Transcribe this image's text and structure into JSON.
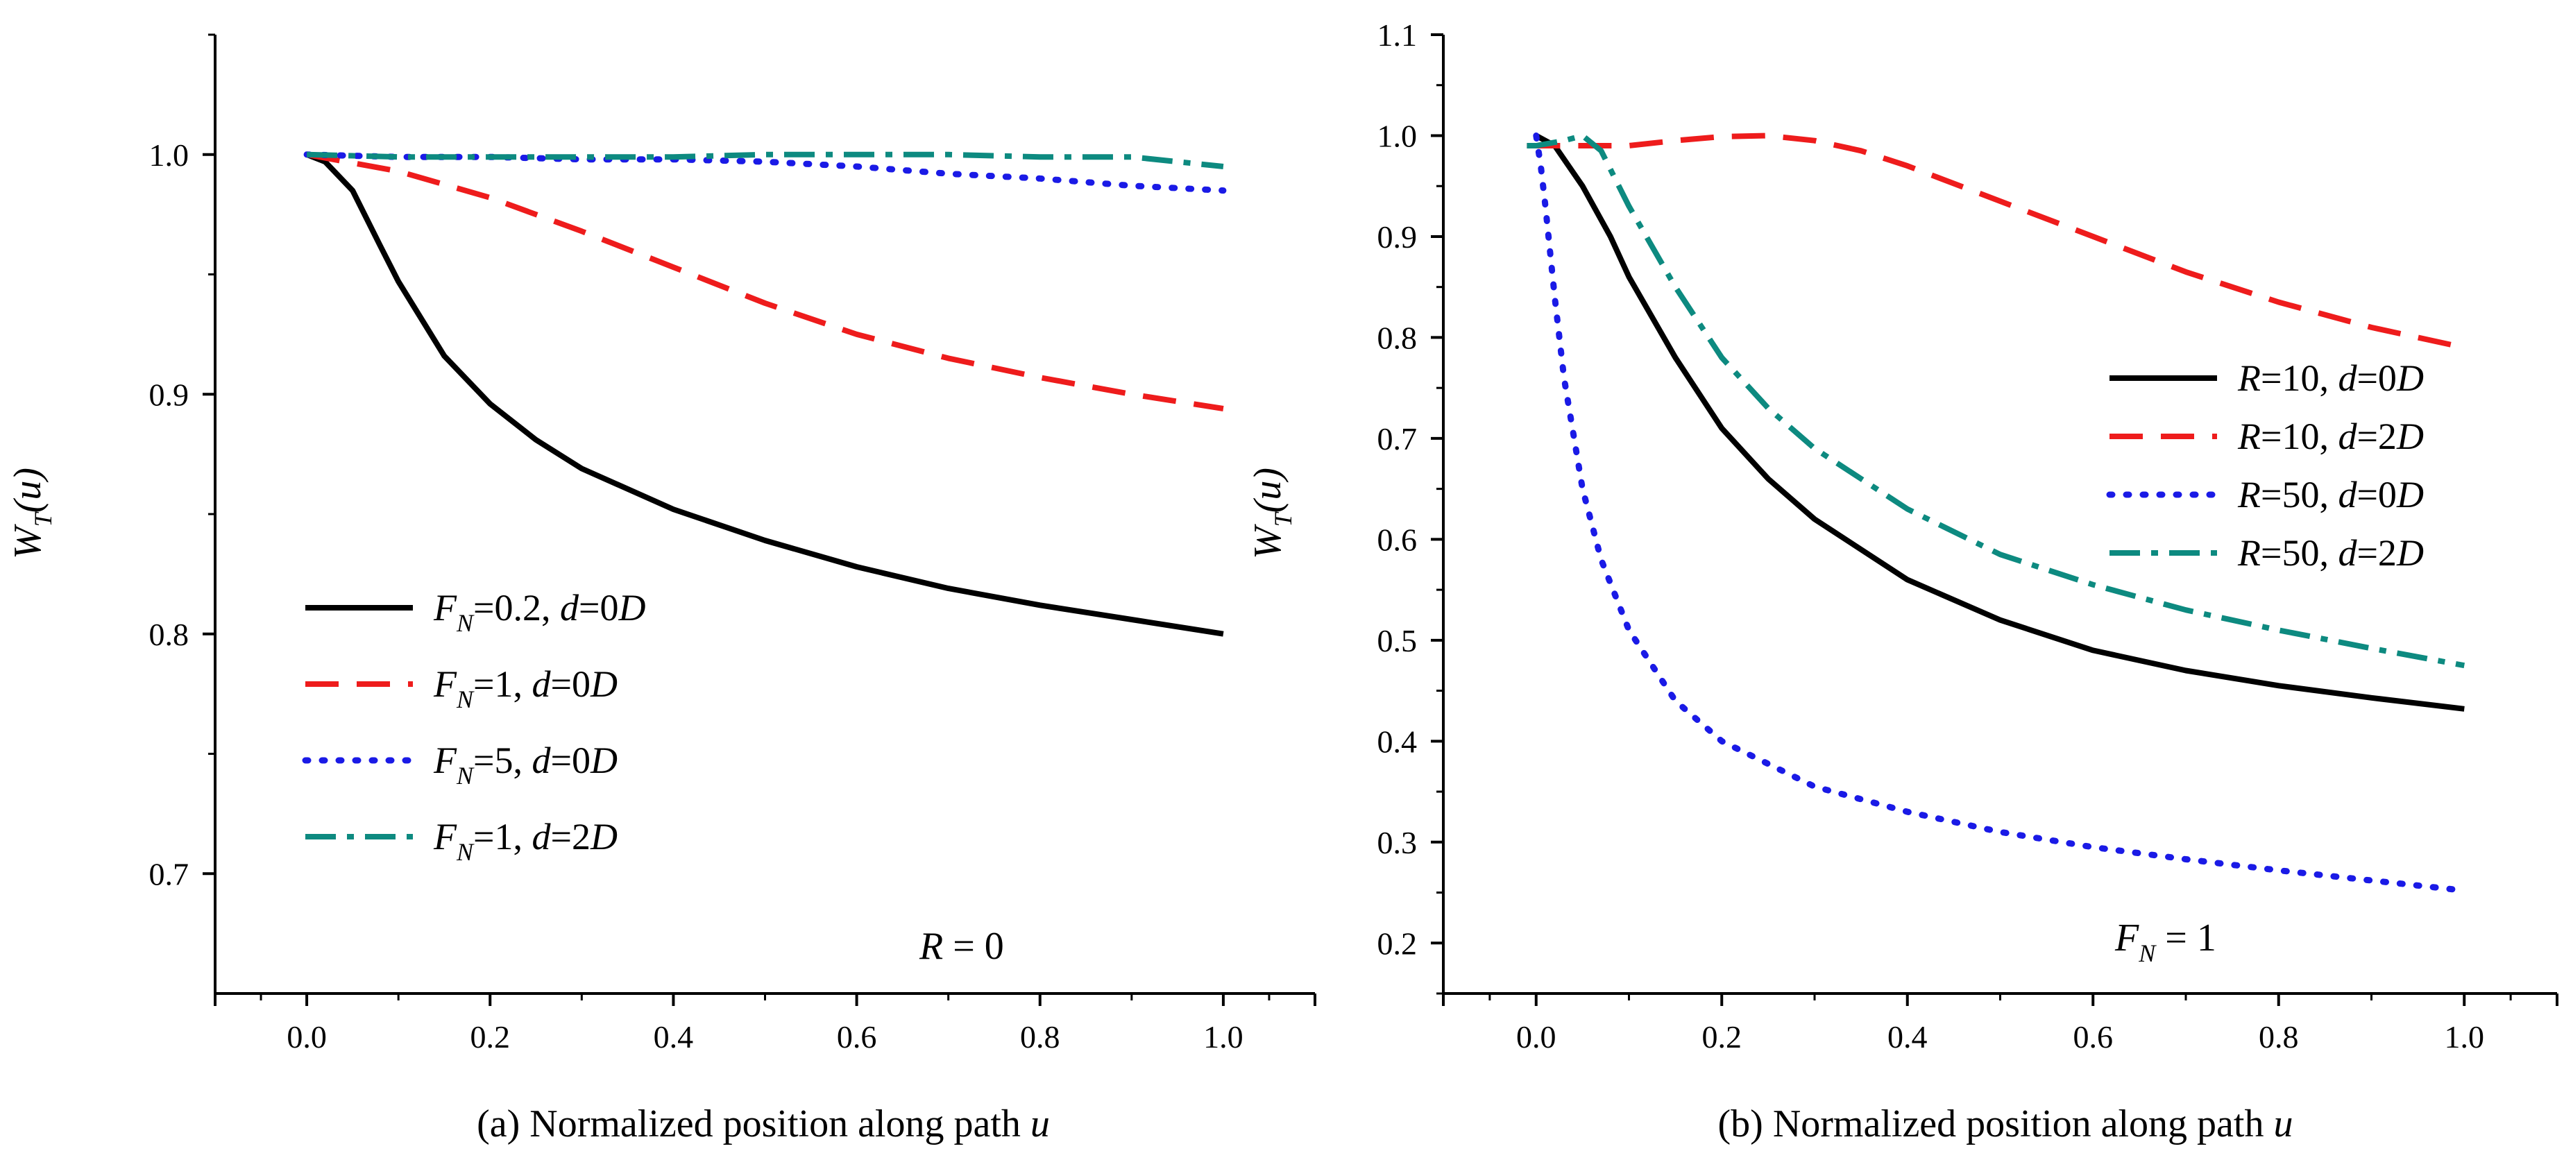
{
  "chart_data": [
    {
      "id": "a",
      "type": "line",
      "title": "",
      "xlabel": {
        "prefix": "(a) Normalized position along path ",
        "var": "u"
      },
      "ylabel": {
        "main": "W",
        "sub": "T",
        "rest": "(u)"
      },
      "xlim": [
        -0.1,
        1.1
      ],
      "ylim": [
        0.65,
        1.05
      ],
      "xticks": [
        0.0,
        0.2,
        0.4,
        0.6,
        0.8,
        1.0
      ],
      "xtick_labels": [
        "0.0",
        "0.2",
        "0.4",
        "0.6",
        "0.8",
        "1.0"
      ],
      "yticks": [
        0.7,
        0.8,
        0.9,
        1.0
      ],
      "ytick_labels": [
        "0.7",
        "0.8",
        "0.9",
        "1.0"
      ],
      "grid": false,
      "legend_position": "lower-left",
      "annotation": {
        "main": "R",
        "sub": "",
        "rest": " = 0"
      },
      "series": [
        {
          "key": "black-solid",
          "color": "#000000",
          "style": "solid",
          "legend": {
            "p1": "F",
            "p1sub": "N",
            "p2": "=0.2, ",
            "p3": "d",
            "p4": "=0",
            "p5": "D"
          },
          "x": [
            0.0,
            0.02,
            0.05,
            0.08,
            0.1,
            0.15,
            0.2,
            0.25,
            0.3,
            0.4,
            0.5,
            0.6,
            0.7,
            0.8,
            0.9,
            1.0
          ],
          "y": [
            1.0,
            0.997,
            0.985,
            0.962,
            0.947,
            0.916,
            0.896,
            0.881,
            0.869,
            0.852,
            0.839,
            0.828,
            0.819,
            0.812,
            0.806,
            0.8
          ]
        },
        {
          "key": "red-dashed",
          "color": "#ee1c1c",
          "style": "dashed",
          "legend": {
            "p1": "F",
            "p1sub": "N",
            "p2": "=1, ",
            "p3": "d",
            "p4": "=0",
            "p5": "D"
          },
          "x": [
            0.0,
            0.1,
            0.2,
            0.3,
            0.4,
            0.5,
            0.6,
            0.7,
            0.8,
            0.9,
            1.0
          ],
          "y": [
            1.0,
            0.993,
            0.982,
            0.968,
            0.953,
            0.938,
            0.925,
            0.915,
            0.907,
            0.9,
            0.894
          ]
        },
        {
          "key": "blue-dotted",
          "color": "#1a1ae6",
          "style": "dotted",
          "legend": {
            "p1": "F",
            "p1sub": "N",
            "p2": "=5, ",
            "p3": "d",
            "p4": "=0",
            "p5": "D"
          },
          "x": [
            0.0,
            0.1,
            0.2,
            0.3,
            0.4,
            0.5,
            0.6,
            0.7,
            0.8,
            0.9,
            1.0
          ],
          "y": [
            1.0,
            0.999,
            0.999,
            0.998,
            0.998,
            0.997,
            0.995,
            0.992,
            0.99,
            0.987,
            0.985
          ]
        },
        {
          "key": "teal-dashdot",
          "color": "#0d8a80",
          "style": "dashdot",
          "legend": {
            "p1": "F",
            "p1sub": "N",
            "p2": "=1, ",
            "p3": "d",
            "p4": "=2",
            "p5": "D"
          },
          "x": [
            0.0,
            0.1,
            0.2,
            0.3,
            0.4,
            0.5,
            0.6,
            0.7,
            0.8,
            0.9,
            1.0
          ],
          "y": [
            1.0,
            0.999,
            0.999,
            0.999,
            0.999,
            1.0,
            1.0,
            1.0,
            0.999,
            0.999,
            0.995
          ]
        }
      ]
    },
    {
      "id": "b",
      "type": "line",
      "title": "",
      "xlabel": {
        "prefix": "(b) Normalized position along path ",
        "var": "u"
      },
      "ylabel": {
        "main": "W",
        "sub": "T",
        "rest": "(u)"
      },
      "xlim": [
        -0.1,
        1.1
      ],
      "ylim": [
        0.15,
        1.1
      ],
      "xticks": [
        0.0,
        0.2,
        0.4,
        0.6,
        0.8,
        1.0
      ],
      "xtick_labels": [
        "0.0",
        "0.2",
        "0.4",
        "0.6",
        "0.8",
        "1.0"
      ],
      "yticks": [
        0.2,
        0.3,
        0.4,
        0.5,
        0.6,
        0.7,
        0.8,
        0.9,
        1.0,
        1.1
      ],
      "ytick_labels": [
        "0.2",
        "0.3",
        "0.4",
        "0.5",
        "0.6",
        "0.7",
        "0.8",
        "0.9",
        "1.0",
        "1.1"
      ],
      "grid": false,
      "legend_position": "center-right",
      "annotation": {
        "main": "F",
        "sub": "N",
        "rest": " = 1"
      },
      "series": [
        {
          "key": "black-solid",
          "color": "#000000",
          "style": "solid",
          "legend": {
            "p1": "R",
            "p1sub": "",
            "p2": "=10, ",
            "p3": "d",
            "p4": "=0",
            "p5": "D"
          },
          "x": [
            0.0,
            0.02,
            0.05,
            0.08,
            0.1,
            0.15,
            0.2,
            0.25,
            0.3,
            0.4,
            0.5,
            0.6,
            0.7,
            0.8,
            0.9,
            1.0
          ],
          "y": [
            1.0,
            0.99,
            0.95,
            0.9,
            0.86,
            0.78,
            0.71,
            0.66,
            0.62,
            0.56,
            0.52,
            0.49,
            0.47,
            0.455,
            0.443,
            0.432
          ]
        },
        {
          "key": "red-dashed",
          "color": "#ee1c1c",
          "style": "dashed",
          "legend": {
            "p1": "R",
            "p1sub": "",
            "p2": "=10, ",
            "p3": "d",
            "p4": "=2",
            "p5": "D"
          },
          "x": [
            -0.01,
            0.0,
            0.05,
            0.1,
            0.15,
            0.2,
            0.25,
            0.3,
            0.35,
            0.4,
            0.5,
            0.6,
            0.7,
            0.8,
            0.9,
            1.0
          ],
          "y": [
            0.99,
            0.99,
            0.99,
            0.99,
            0.995,
            0.999,
            1.0,
            0.995,
            0.985,
            0.97,
            0.935,
            0.9,
            0.865,
            0.835,
            0.81,
            0.79
          ]
        },
        {
          "key": "blue-dotted",
          "color": "#1a1ae6",
          "style": "dotted",
          "legend": {
            "p1": "R",
            "p1sub": "",
            "p2": "=50, ",
            "p3": "d",
            "p4": "=0",
            "p5": "D"
          },
          "x": [
            0.0,
            0.005,
            0.01,
            0.02,
            0.03,
            0.05,
            0.07,
            0.1,
            0.15,
            0.2,
            0.3,
            0.4,
            0.5,
            0.6,
            0.7,
            0.8,
            0.9,
            1.0
          ],
          "y": [
            1.0,
            0.97,
            0.93,
            0.84,
            0.76,
            0.65,
            0.58,
            0.51,
            0.44,
            0.4,
            0.355,
            0.33,
            0.31,
            0.295,
            0.283,
            0.272,
            0.262,
            0.252
          ]
        },
        {
          "key": "teal-dashdot",
          "color": "#0d8a80",
          "style": "dashdot",
          "legend": {
            "p1": "R",
            "p1sub": "",
            "p2": "=50, ",
            "p3": "d",
            "p4": "=2",
            "p5": "D"
          },
          "x": [
            -0.01,
            0.0,
            0.03,
            0.05,
            0.07,
            0.1,
            0.15,
            0.2,
            0.25,
            0.3,
            0.4,
            0.5,
            0.6,
            0.7,
            0.8,
            0.9,
            1.0
          ],
          "y": [
            0.99,
            0.99,
            0.995,
            1.0,
            0.985,
            0.93,
            0.85,
            0.78,
            0.73,
            0.69,
            0.63,
            0.585,
            0.555,
            0.53,
            0.51,
            0.492,
            0.475
          ]
        }
      ]
    }
  ]
}
